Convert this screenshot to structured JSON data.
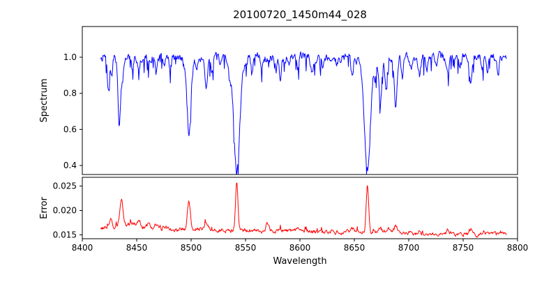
{
  "figure": {
    "background": "#ffffff"
  },
  "chart_data": {
    "type": "line",
    "title": "20100720_1450m44_028",
    "xlabel": "Wavelength",
    "xlim": [
      8400,
      8800
    ],
    "x_ticks": [
      8400,
      8450,
      8500,
      8550,
      8600,
      8650,
      8700,
      8750,
      8800
    ],
    "grid": false,
    "panels": [
      {
        "name": "spectrum",
        "ylabel": "Spectrum",
        "ylim": [
          0.35,
          1.17
        ],
        "y_ticks": [
          0.4,
          0.6,
          0.8,
          1.0
        ],
        "y_tick_labels": [
          "0.4",
          "0.6",
          "0.8",
          "1.0"
        ],
        "color": "#0000ff",
        "description": "Normalized stellar spectrum, continuum near 1.0 with strong Ca II triplet absorption lines near 8498, 8542 and 8662 and many weaker lines",
        "series": {
          "x_start": 8417,
          "x_end": 8790,
          "n_points": 760,
          "baseline": 1.0,
          "baseline_slope": 0.0,
          "noise_amp": 0.04,
          "spike_prob": 0.1,
          "spike_amp": 0.09,
          "spike_sign": -1,
          "feature_sign": -1,
          "seed": 7,
          "features": [
            [
              8424,
              0.17,
              1.1
            ],
            [
              8427,
              0.1,
              0.9
            ],
            [
              8434,
              0.4,
              1.2
            ],
            [
              8437,
              0.12,
              0.9
            ],
            [
              8446,
              0.08,
              0.9
            ],
            [
              8452,
              0.06,
              0.9
            ],
            [
              8461,
              0.05,
              0.9
            ],
            [
              8468,
              0.09,
              1.0
            ],
            [
              8475,
              0.06,
              0.9
            ],
            [
              8481,
              0.07,
              0.9
            ],
            [
              8498,
              0.39,
              1.8
            ],
            [
              8498,
              0.03,
              4.5
            ],
            [
              8505,
              0.06,
              0.9
            ],
            [
              8514,
              0.17,
              1.1
            ],
            [
              8519,
              0.08,
              0.9
            ],
            [
              8527,
              0.06,
              0.9
            ],
            [
              8536,
              0.07,
              0.9
            ],
            [
              8542,
              0.58,
              2.6
            ],
            [
              8542,
              0.05,
              6.0
            ],
            [
              8556,
              0.06,
              0.9
            ],
            [
              8565,
              0.05,
              0.9
            ],
            [
              8578,
              0.08,
              0.9
            ],
            [
              8582,
              0.11,
              1.0
            ],
            [
              8590,
              0.05,
              0.9
            ],
            [
              8598,
              0.07,
              0.9
            ],
            [
              8611,
              0.08,
              1.0
            ],
            [
              8621,
              0.05,
              0.9
            ],
            [
              8634,
              0.05,
              0.9
            ],
            [
              8648,
              0.09,
              1.0
            ],
            [
              8662,
              0.59,
              2.6
            ],
            [
              8662,
              0.05,
              6.0
            ],
            [
              8669,
              0.1,
              0.9
            ],
            [
              8674,
              0.25,
              1.2
            ],
            [
              8679,
              0.17,
              1.1
            ],
            [
              8688,
              0.27,
              1.3
            ],
            [
              8694,
              0.12,
              1.0
            ],
            [
              8702,
              0.06,
              0.9
            ],
            [
              8710,
              0.1,
              1.1
            ],
            [
              8717,
              0.06,
              0.9
            ],
            [
              8726,
              0.05,
              0.9
            ],
            [
              8736,
              0.1,
              1.1
            ],
            [
              8747,
              0.06,
              0.9
            ],
            [
              8757,
              0.15,
              1.2
            ],
            [
              8768,
              0.06,
              0.9
            ],
            [
              8772,
              0.08,
              0.9
            ],
            [
              8782,
              0.1,
              1.0
            ]
          ]
        }
      },
      {
        "name": "error",
        "ylabel": "Error",
        "ylim": [
          0.0142,
          0.0268
        ],
        "y_ticks": [
          0.015,
          0.02,
          0.025
        ],
        "y_tick_labels": [
          "0.015",
          "0.020",
          "0.025"
        ],
        "color": "#ff0000",
        "description": "Error spectrum declining from about 0.0165 to 0.015 with sharp peaks at the strong absorption lines reaching about 0.026 at 8542 and 8662",
        "series": {
          "x_start": 8417,
          "x_end": 8790,
          "n_points": 740,
          "baseline": 0.0164,
          "baseline_slope": -0.0014,
          "noise_amp": 0.0007,
          "spike_prob": 0.05,
          "spike_amp": 0.0008,
          "spike_sign": 1,
          "feature_sign": 1,
          "seed": 13,
          "features": [
            [
              8426,
              0.0018,
              1.6
            ],
            [
              8436,
              0.0048,
              1.6
            ],
            [
              8445,
              0.001,
              8.0
            ],
            [
              8452,
              0.0009,
              1.6
            ],
            [
              8461,
              0.0007,
              1.5
            ],
            [
              8468,
              0.0008,
              1.5
            ],
            [
              8476,
              0.0007,
              1.5
            ],
            [
              8498,
              0.0058,
              1.3
            ],
            [
              8514,
              0.0012,
              1.4
            ],
            [
              8542,
              0.0096,
              1.1
            ],
            [
              8570,
              0.0014,
              1.4
            ],
            [
              8582,
              0.0008,
              1.3
            ],
            [
              8598,
              0.0006,
              1.3
            ],
            [
              8648,
              0.0007,
              1.3
            ],
            [
              8662,
              0.0096,
              1.1
            ],
            [
              8674,
              0.001,
              1.3
            ],
            [
              8681,
              0.0009,
              1.3
            ],
            [
              8688,
              0.0014,
              1.3
            ],
            [
              8710,
              0.0007,
              1.3
            ],
            [
              8736,
              0.0007,
              1.3
            ],
            [
              8757,
              0.001,
              1.3
            ],
            [
              8772,
              0.0006,
              1.3
            ]
          ]
        }
      }
    ]
  }
}
